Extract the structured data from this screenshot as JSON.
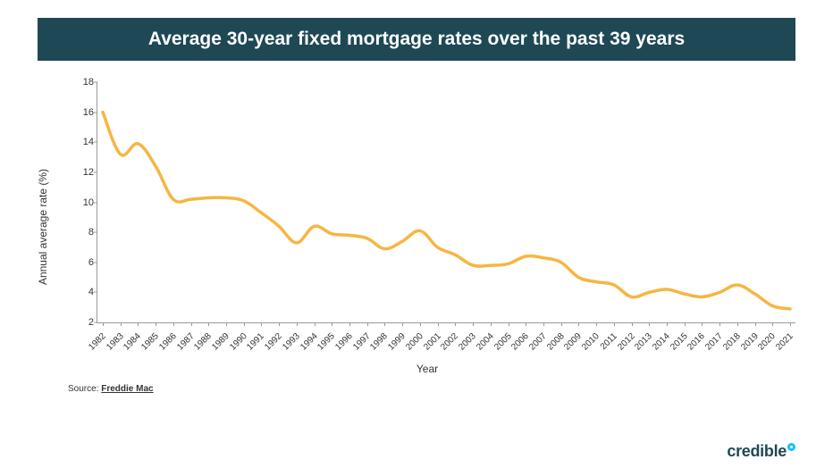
{
  "title": "Average 30-year fixed mortgage rates over the past 39 years",
  "chart": {
    "type": "line",
    "background_color": "#ffffff",
    "line_color": "#f5b642",
    "line_width": 3.5,
    "axis_color": "#999999",
    "text_color": "#333333",
    "ylabel": "Annual average rate (%)",
    "xlabel": "Year",
    "ylim": [
      2,
      18
    ],
    "ytick_step": 2,
    "yticks": [
      2,
      4,
      6,
      8,
      10,
      12,
      14,
      16,
      18
    ],
    "tick_fontsize": 11,
    "label_fontsize": 12,
    "xtick_rotation": -45,
    "years": [
      1982,
      1983,
      1984,
      1985,
      1986,
      1987,
      1988,
      1989,
      1990,
      1991,
      1992,
      1993,
      1994,
      1995,
      1996,
      1997,
      1998,
      1999,
      2000,
      2001,
      2002,
      2003,
      2004,
      2005,
      2006,
      2007,
      2008,
      2009,
      2010,
      2011,
      2012,
      2013,
      2014,
      2015,
      2016,
      2017,
      2018,
      2019,
      2020,
      2021
    ],
    "values": [
      16.0,
      13.2,
      13.9,
      12.4,
      10.2,
      10.2,
      10.3,
      10.3,
      10.1,
      9.3,
      8.4,
      7.3,
      8.4,
      7.9,
      7.8,
      7.6,
      6.9,
      7.4,
      8.1,
      7.0,
      6.5,
      5.8,
      5.8,
      5.9,
      6.4,
      6.3,
      6.0,
      5.0,
      4.7,
      4.5,
      3.7,
      4.0,
      4.2,
      3.9,
      3.7,
      4.0,
      4.5,
      3.9,
      3.1,
      2.9
    ]
  },
  "title_bar": {
    "background_color": "#1f4855",
    "text_color": "#ffffff",
    "fontsize": 21,
    "fontweight": 700
  },
  "source": {
    "prefix": "Source: ",
    "name": "Freddie Mac"
  },
  "brand": {
    "text": "credible",
    "text_color": "#1f4855",
    "accent_color": "#13c1ff"
  }
}
